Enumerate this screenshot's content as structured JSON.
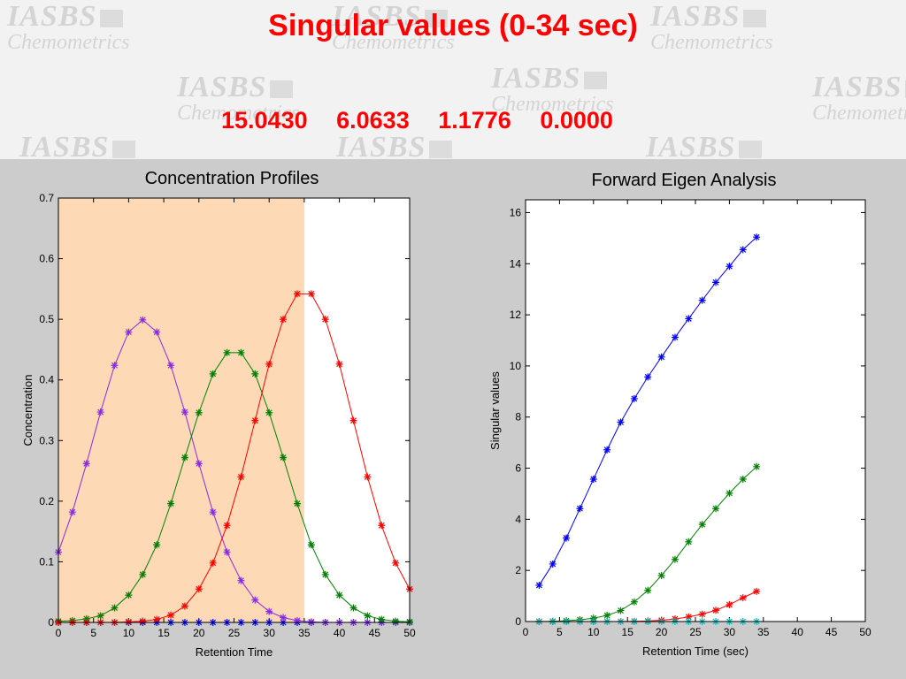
{
  "slide": {
    "title": "Singular values  (0-34 sec)",
    "singular_values": [
      "15.0430",
      "6.0633",
      "1.1776",
      "0.0000"
    ],
    "watermark_text": [
      "IASBS",
      "Chemometrics"
    ]
  },
  "chart_data": [
    {
      "type": "line",
      "title": "Concentration Profiles",
      "xlabel": "Retention Time",
      "ylabel": "Concentration",
      "xlim": [
        0,
        50
      ],
      "ylim": [
        0,
        0.7
      ],
      "xticks": [
        0,
        5,
        10,
        15,
        20,
        25,
        30,
        35,
        40,
        45,
        50
      ],
      "yticks": [
        0,
        0.1,
        0.2,
        0.3,
        0.4,
        0.5,
        0.6,
        0.7
      ],
      "highlight_region": {
        "x": [
          0,
          35
        ],
        "color": "#fdd9b5"
      },
      "x": [
        0,
        2,
        4,
        6,
        8,
        10,
        12,
        14,
        16,
        18,
        20,
        22,
        24,
        26,
        28,
        30,
        32,
        34,
        36,
        38,
        40,
        42,
        44,
        46,
        48,
        50
      ],
      "series": [
        {
          "color": "#0000ff",
          "values": [
            0,
            0,
            0,
            0,
            0,
            0,
            0,
            0,
            0,
            0,
            0,
            0,
            0,
            0,
            0,
            0,
            0,
            0,
            0,
            0,
            0,
            0,
            0,
            0,
            0,
            0
          ]
        },
        {
          "color": "#8a2be2",
          "values": [
            0.116,
            0.182,
            0.262,
            0.347,
            0.424,
            0.479,
            0.499,
            0.479,
            0.424,
            0.347,
            0.262,
            0.182,
            0.116,
            0.069,
            0.037,
            0.018,
            0.008,
            0.003,
            0.001,
            0.0,
            0.0,
            0.0,
            0.0,
            0.0,
            0.0,
            0.0
          ]
        },
        {
          "color": "#008000",
          "values": [
            0.002,
            0.003,
            0.006,
            0.011,
            0.024,
            0.045,
            0.079,
            0.128,
            0.196,
            0.272,
            0.346,
            0.41,
            0.445,
            0.445,
            0.41,
            0.346,
            0.272,
            0.196,
            0.128,
            0.079,
            0.045,
            0.024,
            0.011,
            0.005,
            0.002,
            0.001
          ]
        },
        {
          "color": "#ff0000",
          "values": [
            0.0,
            0.0,
            0.0,
            0.0,
            0.0,
            0.001,
            0.002,
            0.005,
            0.012,
            0.027,
            0.055,
            0.098,
            0.16,
            0.24,
            0.333,
            0.426,
            0.5,
            0.542,
            0.542,
            0.5,
            0.426,
            0.333,
            0.24,
            0.16,
            0.098,
            0.055
          ]
        }
      ]
    },
    {
      "type": "line",
      "title": "Forward Eigen Analysis",
      "xlabel": "Retention Time (sec)",
      "ylabel": "Singular values",
      "xlim": [
        0,
        50
      ],
      "ylim": [
        0,
        16.5
      ],
      "xticks": [
        0,
        5,
        10,
        15,
        20,
        25,
        30,
        35,
        40,
        45,
        50
      ],
      "yticks": [
        0,
        2,
        4,
        6,
        8,
        10,
        12,
        14,
        16
      ],
      "x": [
        2,
        4,
        6,
        8,
        10,
        12,
        14,
        16,
        18,
        20,
        22,
        24,
        26,
        28,
        30,
        32,
        34
      ],
      "series": [
        {
          "color": "#0000ff",
          "values": [
            1.42,
            2.25,
            3.27,
            4.42,
            5.57,
            6.72,
            7.8,
            8.72,
            9.57,
            10.35,
            11.12,
            11.85,
            12.57,
            13.27,
            13.9,
            14.55,
            15.04
          ]
        },
        {
          "color": "#008000",
          "values": [
            0.0,
            0.01,
            0.03,
            0.07,
            0.13,
            0.24,
            0.43,
            0.77,
            1.22,
            1.8,
            2.43,
            3.12,
            3.8,
            4.42,
            5.02,
            5.57,
            6.06
          ]
        },
        {
          "color": "#ff0000",
          "values": [
            0.0,
            0.0,
            0.0,
            0.0,
            0.0,
            0.0,
            0.0,
            0.01,
            0.02,
            0.05,
            0.1,
            0.18,
            0.29,
            0.44,
            0.66,
            0.93,
            1.18
          ]
        },
        {
          "color": "#00bfbf",
          "values": [
            0,
            0,
            0,
            0,
            0,
            0,
            0,
            0,
            0,
            0,
            0,
            0,
            0,
            0,
            0,
            0,
            0
          ]
        }
      ]
    }
  ]
}
